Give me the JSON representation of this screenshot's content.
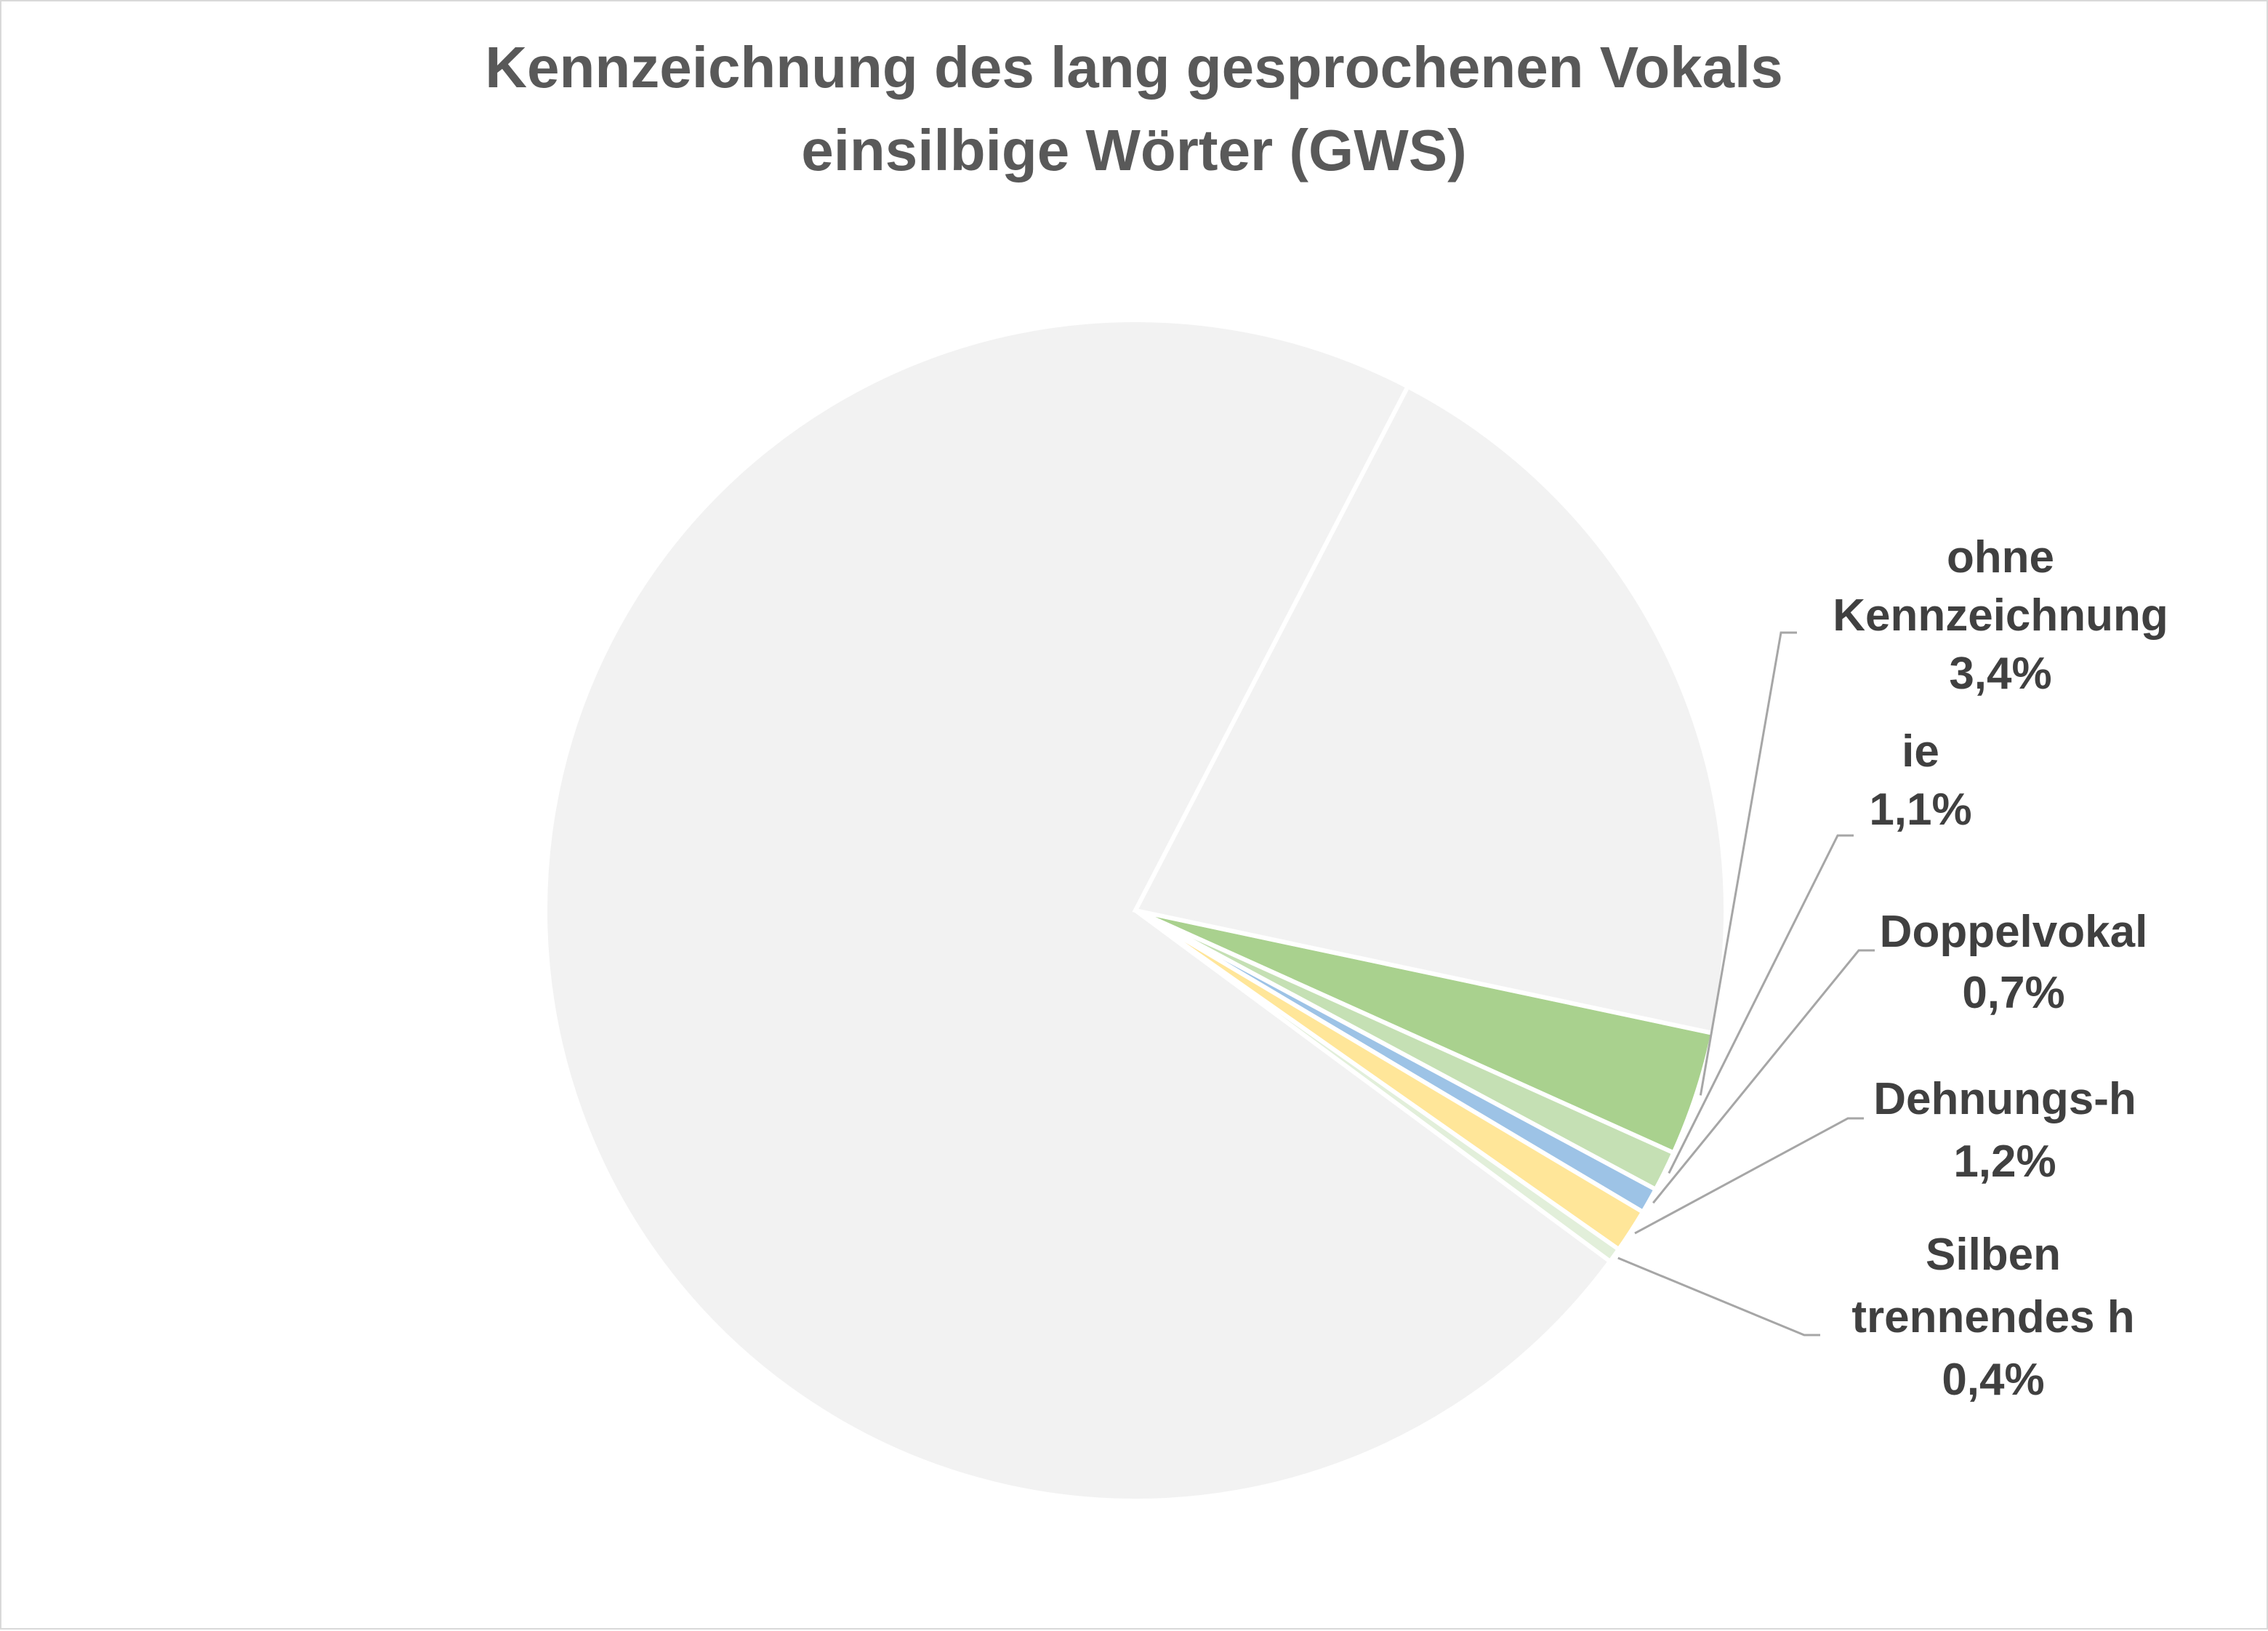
{
  "chart_data": {
    "type": "pie",
    "title_lines": [
      "Kennzeichnung des lang gesprochenen Vokals",
      "einsilbige Wörter (GWS)"
    ],
    "start_angle_deg": 12,
    "direction": "clockwise",
    "slices": [
      {
        "name_lines": [
          "ohne",
          "Kennzeichnung"
        ],
        "value": 3.4,
        "value_label": "3,4%",
        "color": "#A9D18E",
        "labeled": true
      },
      {
        "name_lines": [
          "ie"
        ],
        "value": 1.1,
        "value_label": "1,1%",
        "color": "#C5E0B4",
        "labeled": true
      },
      {
        "name_lines": [
          "Doppelvokal"
        ],
        "value": 0.7,
        "value_label": "0,7%",
        "color": "#9DC3E6",
        "labeled": true
      },
      {
        "name_lines": [
          "Dehnungs-h"
        ],
        "value": 1.2,
        "value_label": "1,2%",
        "color": "#FFE699",
        "labeled": true
      },
      {
        "name_lines": [
          "Silben",
          "trennendes h"
        ],
        "value": 0.4,
        "value_label": "0,4%",
        "color": "#E2EFDA",
        "labeled": true
      },
      {
        "name_lines": [],
        "value": 72.5,
        "value_label": "",
        "color": "#F2F2F2",
        "labeled": false
      },
      {
        "name_lines": [],
        "value": 20.7,
        "value_label": "",
        "color": "#F2F2F2",
        "labeled": false
      }
    ]
  }
}
